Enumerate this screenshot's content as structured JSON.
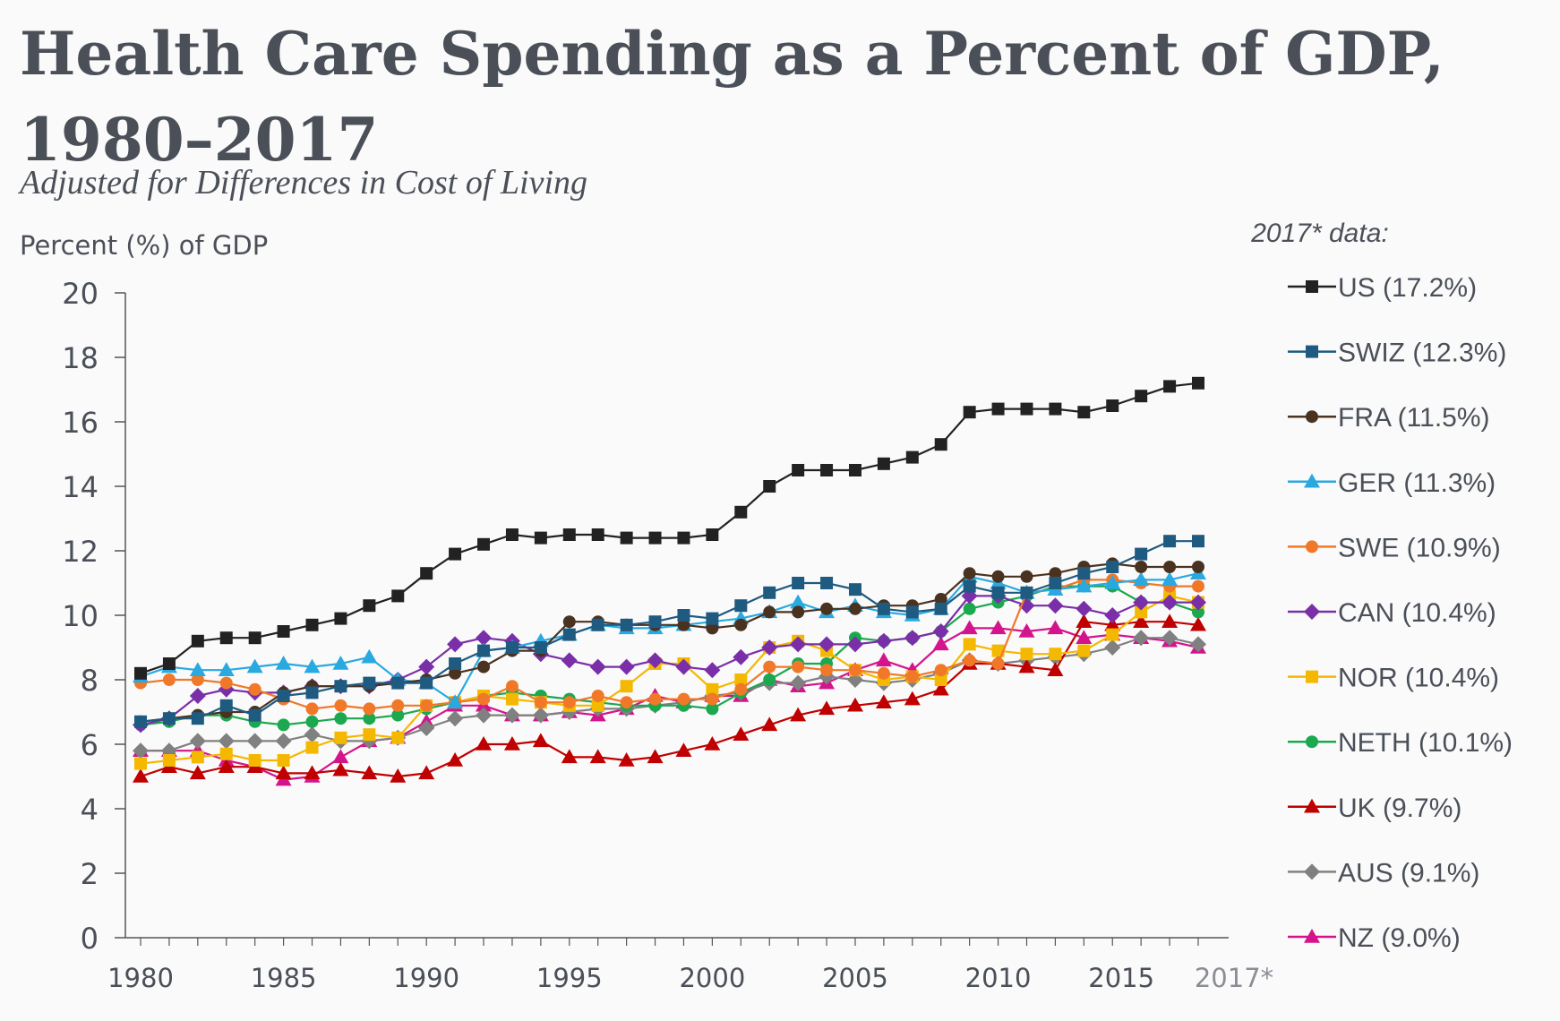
{
  "title": "Health Care Spending as a Percent of GDP, 1980–2017",
  "subtitle": "Adjusted for Differences in Cost of Living",
  "chart_data": {
    "type": "line",
    "ylabel": "Percent (%) of GDP",
    "legend_title": "2017* data:",
    "ylim": [
      0,
      20
    ],
    "yticks": [
      0,
      2,
      4,
      6,
      8,
      10,
      12,
      14,
      16,
      18,
      20
    ],
    "x": [
      1980,
      1981,
      1982,
      1983,
      1984,
      1985,
      1986,
      1987,
      1988,
      1989,
      1990,
      1991,
      1992,
      1993,
      1994,
      1995,
      1996,
      1997,
      1998,
      1999,
      2000,
      2001,
      2002,
      2003,
      2004,
      2005,
      2006,
      2007,
      2008,
      2009,
      2010,
      2011,
      2012,
      2013,
      2014,
      2015,
      2016,
      2017
    ],
    "xticks": [
      {
        "value": 1980,
        "label": "1980"
      },
      {
        "value": 1985,
        "label": "1985"
      },
      {
        "value": 1990,
        "label": "1990"
      },
      {
        "value": 1995,
        "label": "1995"
      },
      {
        "value": 2000,
        "label": "2000"
      },
      {
        "value": 2005,
        "label": "2005"
      },
      {
        "value": 2010,
        "label": "2010"
      },
      {
        "value": 2015,
        "label": "2015"
      },
      {
        "value": 2017,
        "label": "2017*"
      }
    ],
    "series": [
      {
        "name": "US (17.2%)",
        "color": "#222222",
        "marker": "square",
        "values": [
          8.2,
          8.5,
          9.2,
          9.3,
          9.3,
          9.5,
          9.7,
          9.9,
          10.3,
          10.6,
          11.3,
          11.9,
          12.2,
          12.5,
          12.4,
          12.5,
          12.5,
          12.4,
          12.4,
          12.4,
          12.5,
          13.2,
          14.0,
          14.5,
          14.5,
          14.5,
          14.7,
          14.9,
          15.3,
          16.3,
          16.4,
          16.4,
          16.4,
          16.3,
          16.5,
          16.8,
          17.1,
          17.2
        ]
      },
      {
        "name": "SWIZ (12.3%)",
        "color": "#1f5a80",
        "marker": "square",
        "values": [
          6.7,
          6.8,
          6.8,
          7.2,
          6.9,
          7.5,
          7.6,
          7.8,
          7.9,
          7.9,
          7.9,
          8.5,
          8.9,
          9.0,
          9.0,
          9.4,
          9.7,
          9.7,
          9.8,
          10.0,
          9.9,
          10.3,
          10.7,
          11.0,
          11.0,
          10.8,
          10.2,
          10.1,
          10.2,
          10.9,
          10.7,
          10.7,
          11.0,
          11.3,
          11.5,
          11.9,
          12.3,
          12.3
        ]
      },
      {
        "name": "FRA (11.5%)",
        "color": "#4a3220",
        "marker": "circle",
        "values": [
          6.7,
          6.8,
          6.9,
          7.0,
          7.0,
          7.6,
          7.8,
          7.8,
          7.8,
          7.9,
          8.0,
          8.2,
          8.4,
          8.9,
          8.9,
          9.8,
          9.8,
          9.7,
          9.7,
          9.7,
          9.6,
          9.7,
          10.1,
          10.1,
          10.2,
          10.2,
          10.3,
          10.3,
          10.5,
          11.3,
          11.2,
          11.2,
          11.3,
          11.5,
          11.6,
          11.5,
          11.5,
          11.5
        ]
      },
      {
        "name": "GER (11.3%)",
        "color": "#29a9e0",
        "marker": "triangle",
        "values": [
          8.1,
          8.4,
          8.3,
          8.3,
          8.4,
          8.5,
          8.4,
          8.5,
          8.7,
          8.0,
          7.9,
          7.3,
          8.9,
          9.0,
          9.2,
          9.4,
          9.7,
          9.6,
          9.6,
          9.7,
          9.8,
          9.9,
          10.1,
          10.4,
          10.1,
          10.3,
          10.1,
          10.0,
          10.2,
          11.2,
          11.0,
          10.7,
          10.8,
          10.9,
          11.0,
          11.1,
          11.1,
          11.3
        ]
      },
      {
        "name": "SWE (10.9%)",
        "color": "#f07828",
        "marker": "circle",
        "values": [
          7.9,
          8.0,
          8.0,
          7.9,
          7.7,
          7.4,
          7.1,
          7.2,
          7.1,
          7.2,
          7.2,
          7.3,
          7.4,
          7.8,
          7.3,
          7.3,
          7.5,
          7.3,
          7.4,
          7.4,
          7.4,
          7.7,
          8.4,
          8.4,
          8.3,
          8.3,
          8.2,
          8.1,
          8.3,
          8.6,
          8.5,
          10.7,
          10.8,
          11.1,
          11.1,
          11.0,
          10.9,
          10.9
        ]
      },
      {
        "name": "CAN (10.4%)",
        "color": "#7a2fa8",
        "marker": "diamond",
        "values": [
          6.6,
          6.8,
          7.5,
          7.7,
          7.6,
          7.6,
          7.8,
          7.8,
          7.8,
          8.0,
          8.4,
          9.1,
          9.3,
          9.2,
          8.8,
          8.6,
          8.4,
          8.4,
          8.6,
          8.4,
          8.3,
          8.7,
          9.0,
          9.1,
          9.1,
          9.1,
          9.2,
          9.3,
          9.5,
          10.6,
          10.6,
          10.3,
          10.3,
          10.2,
          10.0,
          10.4,
          10.4,
          10.4
        ]
      },
      {
        "name": "NOR (10.4%)",
        "color": "#f5b800",
        "marker": "square",
        "values": [
          5.4,
          5.5,
          5.6,
          5.7,
          5.5,
          5.5,
          5.9,
          6.2,
          6.3,
          6.2,
          7.2,
          7.3,
          7.5,
          7.4,
          7.3,
          7.2,
          7.2,
          7.8,
          8.5,
          8.5,
          7.7,
          8.0,
          9.0,
          9.2,
          8.9,
          8.3,
          8.0,
          8.1,
          8.0,
          9.1,
          8.9,
          8.8,
          8.8,
          8.9,
          9.4,
          10.1,
          10.6,
          10.4
        ]
      },
      {
        "name": "NETH (10.1%)",
        "color": "#1ba84e",
        "marker": "circle",
        "values": [
          6.6,
          6.7,
          6.9,
          6.9,
          6.7,
          6.6,
          6.7,
          6.8,
          6.8,
          6.9,
          7.1,
          7.3,
          7.5,
          7.6,
          7.5,
          7.4,
          7.3,
          7.2,
          7.2,
          7.2,
          7.1,
          7.6,
          8.0,
          8.5,
          8.5,
          9.3,
          9.2,
          9.3,
          9.5,
          10.2,
          10.4,
          10.6,
          10.9,
          10.9,
          10.9,
          10.4,
          10.4,
          10.1
        ]
      },
      {
        "name": "UK (9.7%)",
        "color": "#c00000",
        "marker": "triangle",
        "values": [
          5.0,
          5.3,
          5.1,
          5.3,
          5.3,
          5.1,
          5.1,
          5.2,
          5.1,
          5.0,
          5.1,
          5.5,
          6.0,
          6.0,
          6.1,
          5.6,
          5.6,
          5.5,
          5.6,
          5.8,
          6.0,
          6.3,
          6.6,
          6.9,
          7.1,
          7.2,
          7.3,
          7.4,
          7.7,
          8.5,
          8.5,
          8.4,
          8.3,
          9.8,
          9.7,
          9.8,
          9.8,
          9.7
        ]
      },
      {
        "name": "AUS (9.1%)",
        "color": "#808080",
        "marker": "diamond",
        "values": [
          5.8,
          5.8,
          6.1,
          6.1,
          6.1,
          6.1,
          6.3,
          6.1,
          6.1,
          6.2,
          6.5,
          6.8,
          6.9,
          6.9,
          6.9,
          7.0,
          7.1,
          7.1,
          7.2,
          7.3,
          7.5,
          7.6,
          7.9,
          7.9,
          8.1,
          8.0,
          7.9,
          8.0,
          8.2,
          8.6,
          8.5,
          8.6,
          8.7,
          8.8,
          9.0,
          9.3,
          9.3,
          9.1
        ]
      },
      {
        "name": "NZ (9.0%)",
        "color": "#d4148c",
        "marker": "triangle",
        "values": [
          5.8,
          5.8,
          5.8,
          5.5,
          5.3,
          4.9,
          5.0,
          5.6,
          6.1,
          6.2,
          6.7,
          7.2,
          7.2,
          6.9,
          6.9,
          7.0,
          6.9,
          7.1,
          7.5,
          7.3,
          7.5,
          7.5,
          8.0,
          7.8,
          7.9,
          8.3,
          8.6,
          8.3,
          9.1,
          9.6,
          9.6,
          9.5,
          9.6,
          9.3,
          9.4,
          9.3,
          9.2,
          9.0
        ]
      }
    ]
  }
}
